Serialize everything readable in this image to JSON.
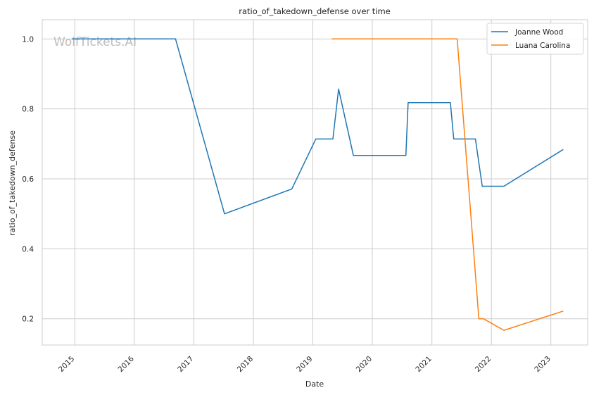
{
  "chart_data": {
    "type": "line",
    "title": "ratio_of_takedown_defense over time",
    "xlabel": "Date",
    "ylabel": "ratio_of_takedown_defense",
    "watermark": "WolfTickets.AI",
    "xlim": [
      "2014-06-15",
      "2023-08-15"
    ],
    "ylim": [
      0.125,
      1.055
    ],
    "x_ticks": [
      "2015-01-01",
      "2016-01-01",
      "2017-01-01",
      "2018-01-01",
      "2019-01-01",
      "2020-01-01",
      "2021-01-01",
      "2022-01-01",
      "2023-01-01"
    ],
    "x_tick_labels": [
      "2015",
      "2016",
      "2017",
      "2018",
      "2019",
      "2020",
      "2021",
      "2022",
      "2023"
    ],
    "y_ticks": [
      0.2,
      0.4,
      0.6,
      0.8,
      1.0
    ],
    "y_tick_labels": [
      "0.2",
      "0.4",
      "0.6",
      "0.8",
      "1.0"
    ],
    "grid": true,
    "legend_position": "top-right",
    "series": [
      {
        "name": "Joanne Wood",
        "color": "#1f77b4",
        "points": [
          [
            "2014-12-13",
            1.0
          ],
          [
            "2016-09-10",
            1.0
          ],
          [
            "2017-07-08",
            0.5
          ],
          [
            "2018-08-25",
            0.571
          ],
          [
            "2019-01-19",
            0.714
          ],
          [
            "2019-05-04",
            0.714
          ],
          [
            "2019-06-08",
            0.857
          ],
          [
            "2019-09-07",
            0.667
          ],
          [
            "2020-07-25",
            0.667
          ],
          [
            "2020-08-08",
            0.818
          ],
          [
            "2021-04-24",
            0.818
          ],
          [
            "2021-05-15",
            0.714
          ],
          [
            "2021-09-25",
            0.714
          ],
          [
            "2021-11-06",
            0.579
          ],
          [
            "2022-03-19",
            0.579
          ],
          [
            "2023-03-18",
            0.684
          ]
        ]
      },
      {
        "name": "Luana Carolina",
        "color": "#ff7f0e",
        "points": [
          [
            "2019-04-27",
            1.0
          ],
          [
            "2021-06-05",
            1.0
          ],
          [
            "2021-10-16",
            0.2
          ],
          [
            "2021-11-13",
            0.2
          ],
          [
            "2022-03-19",
            0.167
          ],
          [
            "2023-03-18",
            0.222
          ]
        ]
      }
    ]
  }
}
